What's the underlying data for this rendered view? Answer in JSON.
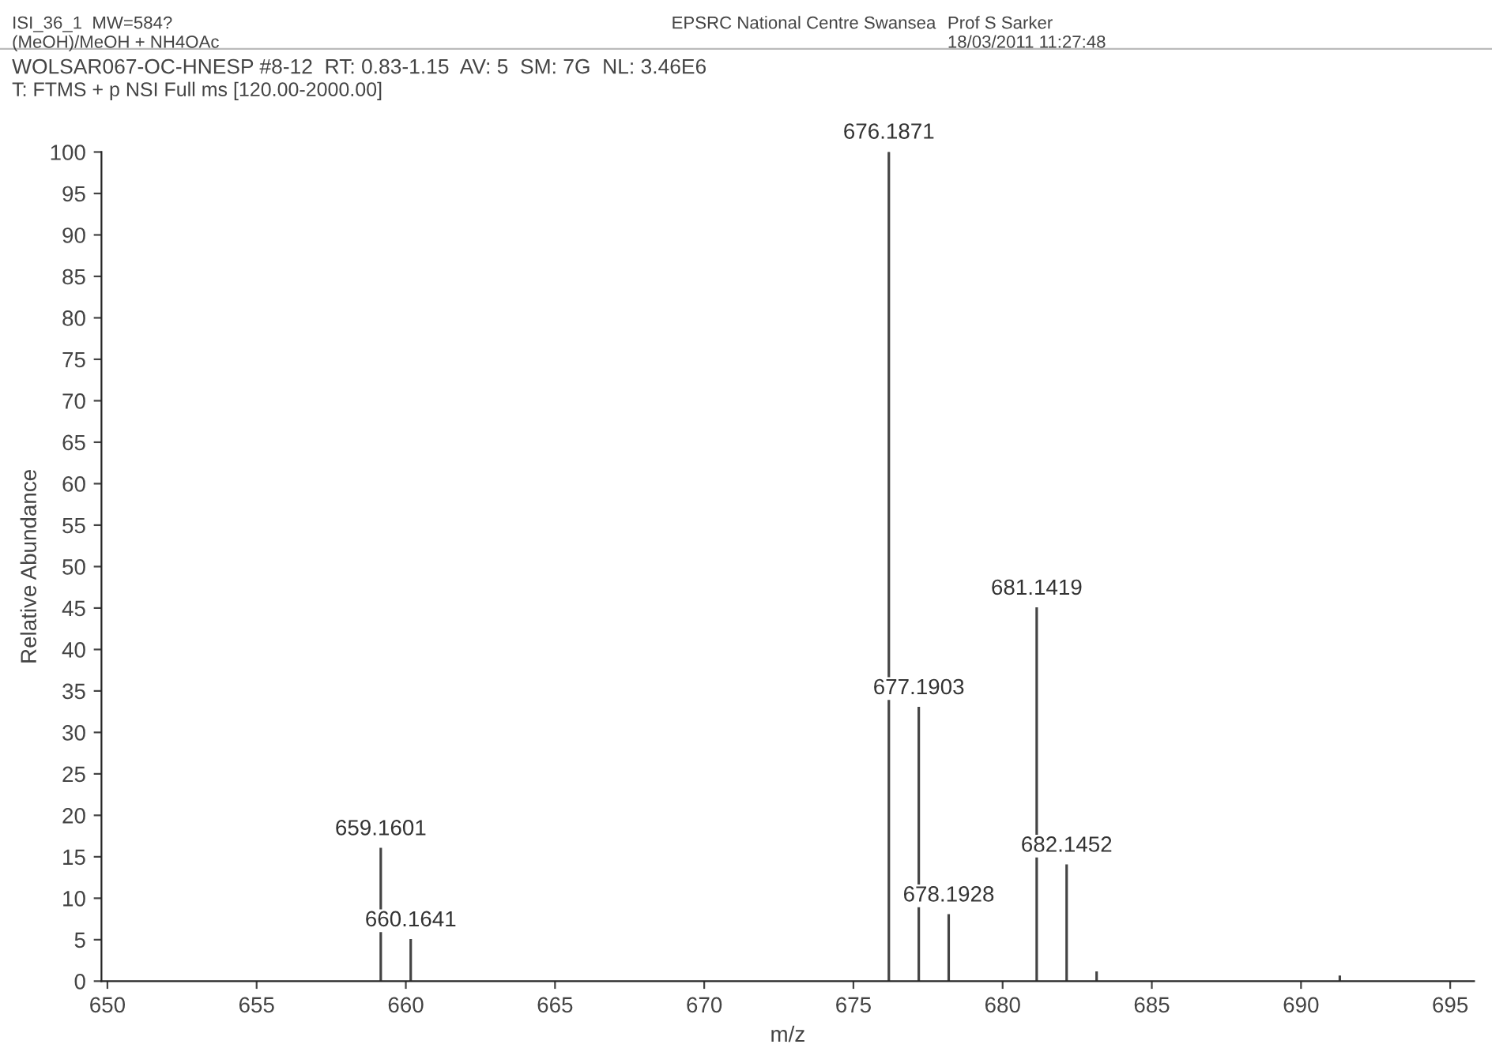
{
  "chart_data": {
    "type": "bar",
    "annotations": [
      "ISI_36_1  MW=584?",
      "(MeOH)/MeOH + NH4OAc",
      "EPSRC National Centre Swansea",
      "Prof S Sarker",
      "18/03/2011 11:27:48",
      "WOLSAR067-OC-HNESP #8-12  RT: 0.83-1.15  AV: 5  SM: 7G  NL: 3.46E6",
      "T: FTMS + p NSI Full ms [120.00-2000.00]"
    ],
    "xlabel": "m/z",
    "ylabel": "Relative Abundance",
    "x": [
      659.1601,
      660.1641,
      676.1871,
      677.1903,
      678.1928,
      681.1419,
      682.1452,
      683.15,
      691.3
    ],
    "series": [
      {
        "color": "#444444",
        "values": [
          16,
          5,
          100,
          33,
          8,
          45,
          14,
          1.1,
          0.6
        ]
      }
    ],
    "value_labels": [
      "659.1601",
      "660.1641",
      "676.1871",
      "677.1903",
      "678.1928",
      "681.1419",
      "682.1452",
      null,
      null
    ],
    "xlim": [
      649.8,
      695.8
    ],
    "xticks": [
      650,
      655,
      660,
      665,
      670,
      675,
      680,
      685,
      690,
      695
    ],
    "ylim": [
      0,
      100
    ],
    "yticks": [
      0,
      5,
      10,
      15,
      20,
      25,
      30,
      35,
      40,
      45,
      50,
      55,
      60,
      65,
      70,
      75,
      80,
      85,
      90,
      95,
      100
    ],
    "grid": false,
    "legend": false
  }
}
